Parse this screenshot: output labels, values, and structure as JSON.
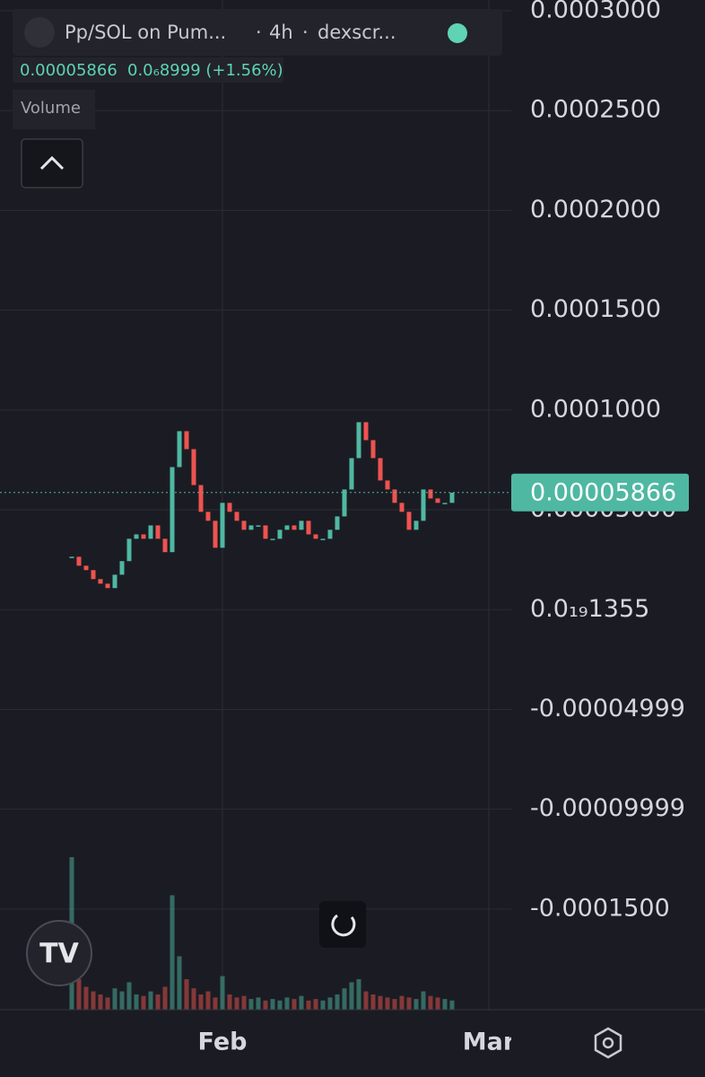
{
  "header": {
    "symbol": "Pp/SOL on Pum...",
    "interval": "4h",
    "source": "dexscr...",
    "price": 5.866e-05,
    "change": "0.0₆8999 (+1.56%)"
  },
  "volume_label": "Volume",
  "chart_data": {
    "type": "candlestick",
    "values": [
      2.65e-05,
      2.2e-05,
      1.98e-05,
      1.53e-05,
      1.3e-05,
      1.08e-05,
      1.75e-05,
      2.43e-05,
      3.55e-05,
      3.77e-05,
      3.55e-05,
      4.22e-05,
      3.55e-05,
      2.88e-05,
      7.14e-05,
      8.94e-05,
      8.04e-05,
      6.24e-05,
      4.9e-05,
      4.45e-05,
      3.1e-05,
      5.35e-05,
      4.9e-05,
      4.45e-05,
      4e-05,
      4.22e-05,
      4.22e-05,
      3.55e-05,
      3.55e-05,
      4e-05,
      4.22e-05,
      4e-05,
      4.45e-05,
      3.77e-05,
      3.55e-05,
      3.55e-05,
      4e-05,
      4.67e-05,
      6.02e-05,
      7.59e-05,
      9.39e-05,
      8.49e-05,
      7.59e-05,
      6.47e-05,
      6.02e-05,
      5.35e-05,
      4.9e-05,
      4e-05,
      4.45e-05,
      6.02e-05,
      5.57e-05,
      5.35e-05,
      5.35e-05,
      5.86e-05
    ],
    "volume": [
      100,
      20,
      15,
      12,
      10,
      8,
      14,
      12,
      18,
      10,
      9,
      12,
      10,
      15,
      75,
      35,
      20,
      14,
      10,
      12,
      8,
      22,
      10,
      8,
      9,
      7,
      8,
      6,
      7,
      6,
      8,
      7,
      9,
      6,
      7,
      6,
      8,
      10,
      14,
      18,
      20,
      12,
      10,
      9,
      8,
      7,
      9,
      8,
      7,
      12,
      9,
      8,
      7,
      6
    ],
    "ylim": [
      -0.0002004,
      0.0003054
    ],
    "yticks": [
      {
        "value": 0.0003,
        "label": "0.0003000"
      },
      {
        "value": 0.00025,
        "label": "0.0002500"
      },
      {
        "value": 0.0002,
        "label": "0.0002000"
      },
      {
        "value": 0.00015,
        "label": "0.0001500"
      },
      {
        "value": 0.0001,
        "label": "0.0001000"
      },
      {
        "value": 5e-05,
        "label": "0.00005000"
      },
      {
        "value": 1.355e-20,
        "label": "0.0₁₉1355"
      },
      {
        "value": -4.999e-05,
        "label": "-0.00004999"
      },
      {
        "value": -9.999e-05,
        "label": "-0.00009999"
      },
      {
        "value": -0.00015,
        "label": "-0.0001500"
      }
    ],
    "x_labels": [
      "Feb",
      "Mar"
    ],
    "last_price": 5.866e-05,
    "up_color": "#4fb8a2",
    "down_color": "#ef5350",
    "grid": true
  }
}
